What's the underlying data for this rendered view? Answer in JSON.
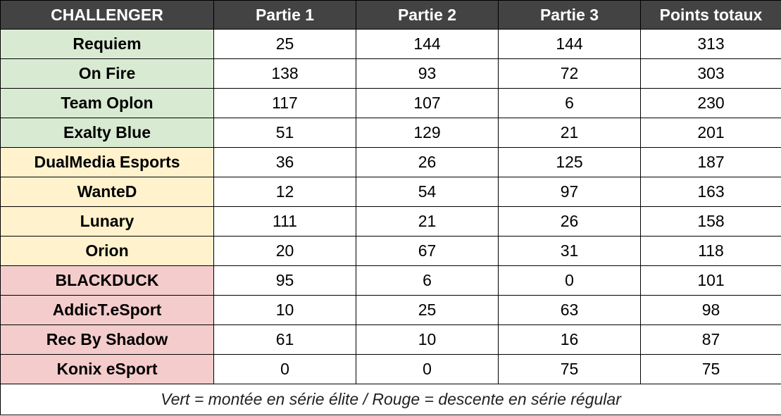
{
  "table": {
    "headers": [
      "CHALLENGER",
      "Partie 1",
      "Partie 2",
      "Partie 3",
      "Points totaux"
    ],
    "rows": [
      {
        "team": "Requiem",
        "zone": "promo",
        "p1": "25",
        "p2": "144",
        "p3": "144",
        "total": "313"
      },
      {
        "team": "On Fire",
        "zone": "promo",
        "p1": "138",
        "p2": "93",
        "p3": "72",
        "total": "303"
      },
      {
        "team": "Team Oplon",
        "zone": "promo",
        "p1": "117",
        "p2": "107",
        "p3": "6",
        "total": "230"
      },
      {
        "team": "Exalty Blue",
        "zone": "promo",
        "p1": "51",
        "p2": "129",
        "p3": "21",
        "total": "201"
      },
      {
        "team": "DualMedia Esports",
        "zone": "mid",
        "p1": "36",
        "p2": "26",
        "p3": "125",
        "total": "187"
      },
      {
        "team": "WanteD",
        "zone": "mid",
        "p1": "12",
        "p2": "54",
        "p3": "97",
        "total": "163"
      },
      {
        "team": "Lunary",
        "zone": "mid",
        "p1": "111",
        "p2": "21",
        "p3": "26",
        "total": "158"
      },
      {
        "team": "Orion",
        "zone": "mid",
        "p1": "20",
        "p2": "67",
        "p3": "31",
        "total": "118"
      },
      {
        "team": "BLACKDUCK",
        "zone": "releg",
        "p1": "95",
        "p2": "6",
        "p3": "0",
        "total": "101"
      },
      {
        "team": "AddicT.eSport",
        "zone": "releg",
        "p1": "10",
        "p2": "25",
        "p3": "63",
        "total": "98"
      },
      {
        "team": "Rec By Shadow",
        "zone": "releg",
        "p1": "61",
        "p2": "10",
        "p3": "16",
        "total": "87"
      },
      {
        "team": "Konix eSport",
        "zone": "releg",
        "p1": "0",
        "p2": "0",
        "p3": "75",
        "total": "75"
      }
    ],
    "note": "Vert = montée en série élite / Rouge = descente en série régular"
  },
  "colors": {
    "header_bg": "#434343",
    "promo": "#d9ead3",
    "mid": "#fff2cc",
    "releg": "#f4cccc"
  }
}
